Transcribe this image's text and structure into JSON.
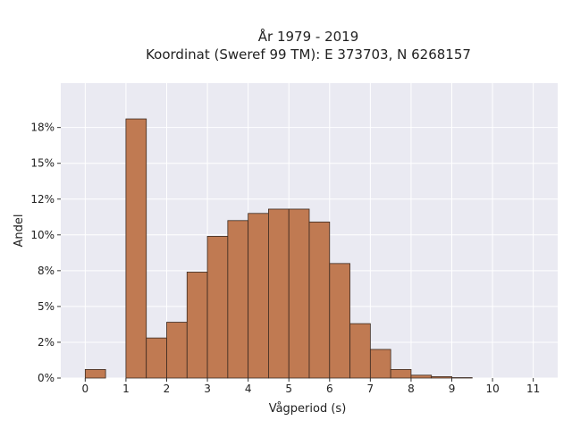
{
  "chart_data": {
    "type": "bar",
    "title": "År 1979 - 2019",
    "subtitle": "Koordinat (Sweref 99 TM): E 373703, N 6268157",
    "xlabel": "Vågperiod (s)",
    "ylabel": "Andel",
    "bin_width": 0.5,
    "bins_start": [
      0,
      0.5,
      1,
      1.5,
      2,
      2.5,
      3,
      3.5,
      4,
      4.5,
      5,
      5.5,
      6,
      6.5,
      7,
      7.5,
      8,
      8.5,
      9,
      9.5,
      10,
      10.5
    ],
    "values": [
      0.6,
      0,
      18.1,
      2.8,
      3.9,
      7.4,
      9.9,
      11.0,
      11.5,
      11.8,
      11.8,
      10.9,
      8.0,
      3.8,
      2.0,
      0.6,
      0.2,
      0.1,
      0.03,
      0,
      0,
      0
    ],
    "xlim": [
      -0.6,
      11.6
    ],
    "ylim": [
      0,
      20.6
    ],
    "x_ticks": [
      0,
      1,
      2,
      3,
      4,
      5,
      6,
      7,
      8,
      9,
      10,
      11
    ],
    "y_ticks": [
      0,
      2.5,
      5,
      7.5,
      10,
      12.5,
      15,
      17.5
    ],
    "y_tick_labels": [
      "0%",
      "2%",
      "5%",
      "8%",
      "10%",
      "12%",
      "15%",
      "18%"
    ],
    "grid": true,
    "colors": {
      "bar": "#c07a52",
      "edge": "#3b2a20",
      "plot_bg": "#eaeaf2",
      "grid": "#ffffff"
    }
  }
}
